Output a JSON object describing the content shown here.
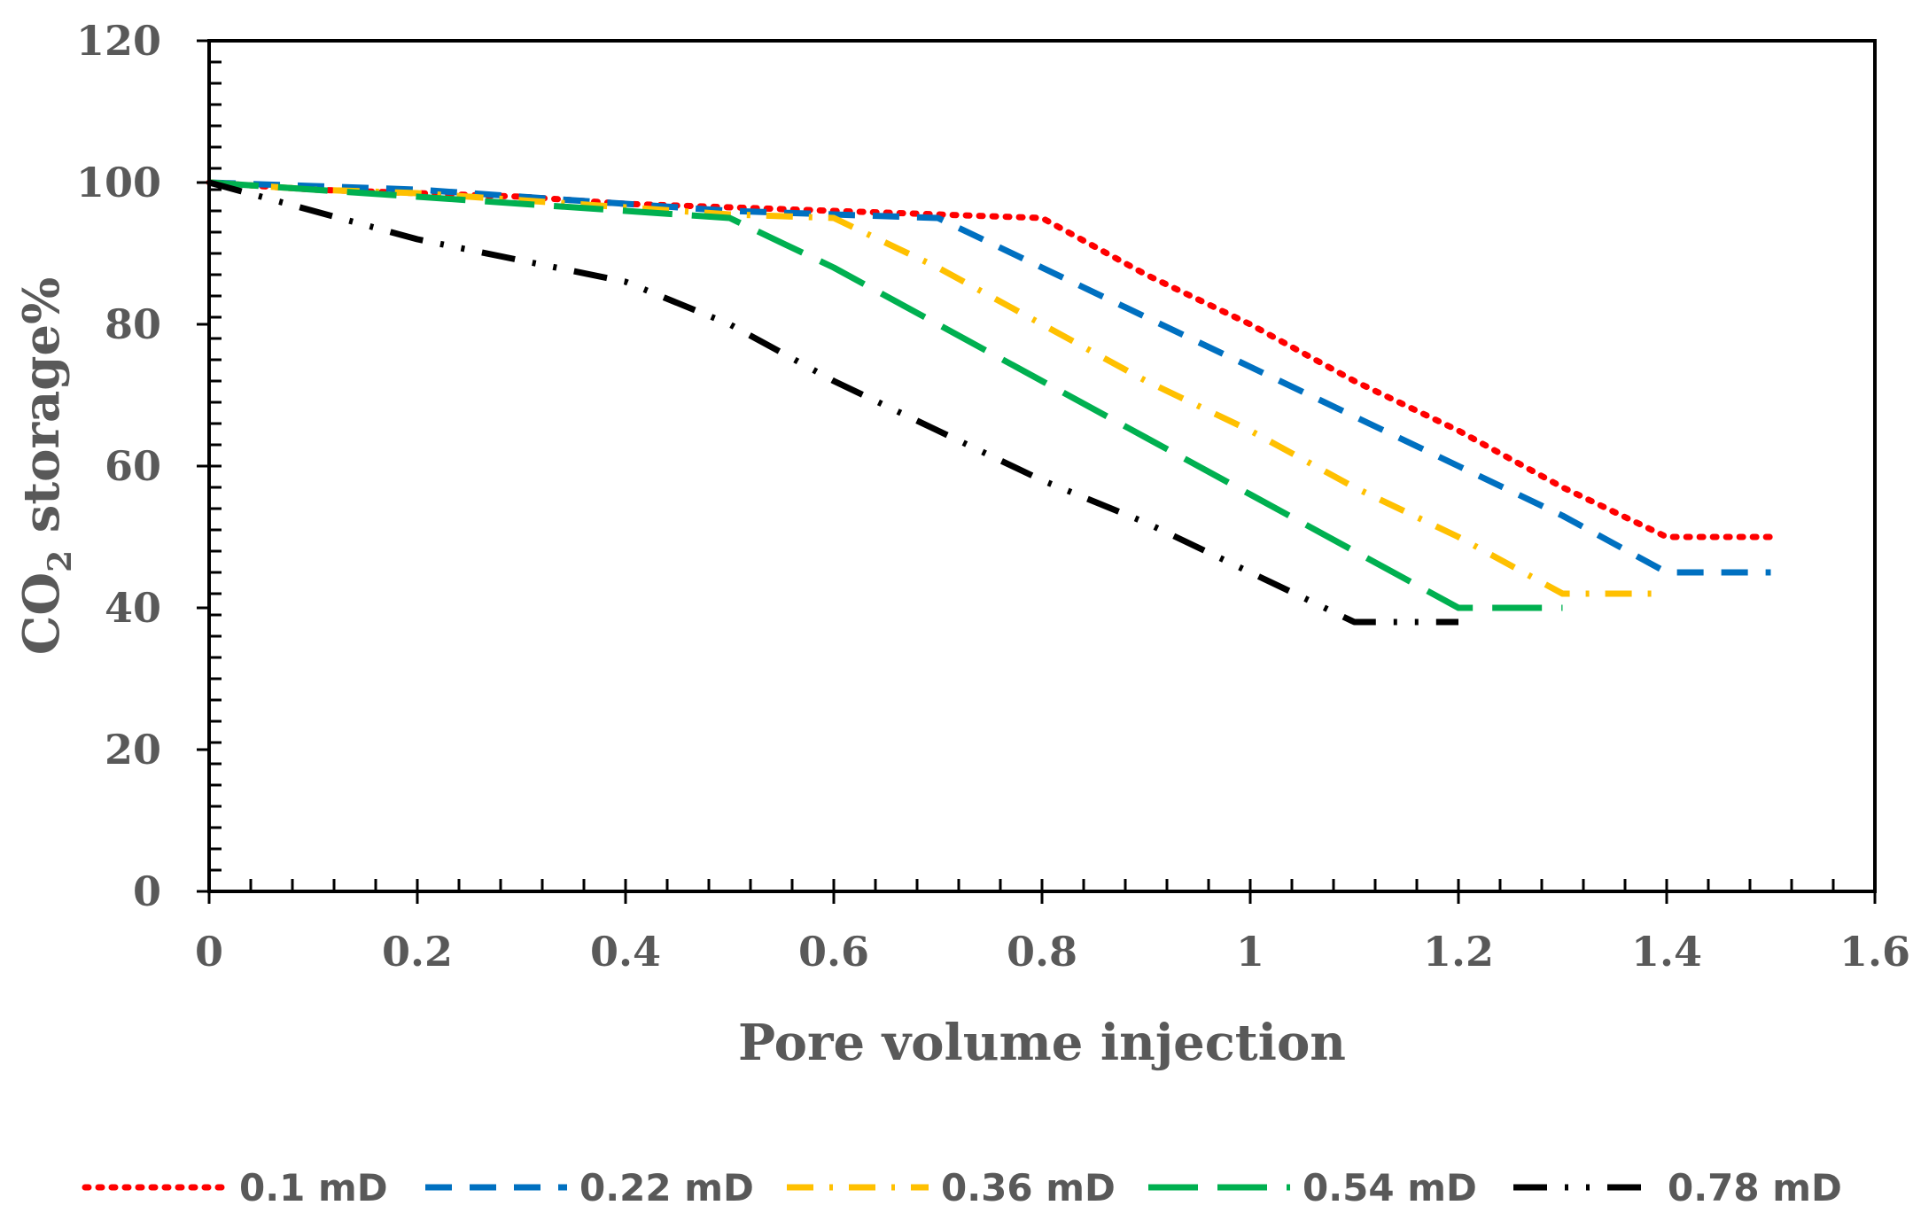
{
  "chart_data": {
    "type": "line",
    "xlabel": "Pore volume injection",
    "ylabel_prefix": "CO",
    "ylabel_subscript": "2",
    "ylabel_suffix": " storage%",
    "xlim": [
      0,
      1.6
    ],
    "ylim": [
      0,
      120
    ],
    "x_ticks": [
      0,
      0.2,
      0.4,
      0.6,
      0.8,
      1,
      1.2,
      1.4,
      1.6
    ],
    "x_tick_labels": [
      "0",
      "0.2",
      "0.4",
      "0.6",
      "0.8",
      "1",
      "1.2",
      "1.4",
      "1.6"
    ],
    "y_ticks": [
      0,
      20,
      40,
      60,
      80,
      100,
      120
    ],
    "y_tick_labels": [
      "0",
      "20",
      "40",
      "60",
      "80",
      "100",
      "120"
    ],
    "grid": false,
    "legend_position": "bottom",
    "series": [
      {
        "name": "0.1 mD",
        "color": "#FF0000",
        "style": "dotted",
        "x": [
          0,
          0.1,
          0.2,
          0.3,
          0.4,
          0.5,
          0.6,
          0.7,
          0.8,
          0.9,
          1.0,
          1.1,
          1.2,
          1.3,
          1.4,
          1.5
        ],
        "y": [
          100,
          99,
          98.5,
          98,
          97,
          96.5,
          96,
          95.5,
          95,
          87,
          80,
          72,
          65,
          57,
          50,
          50
        ]
      },
      {
        "name": "0.22 mD",
        "color": "#0070C0",
        "style": "dashed",
        "x": [
          0,
          0.1,
          0.2,
          0.3,
          0.4,
          0.5,
          0.6,
          0.7,
          0.8,
          0.9,
          1.0,
          1.1,
          1.2,
          1.3,
          1.4,
          1.5
        ],
        "y": [
          100,
          99.5,
          99,
          98,
          97,
          96,
          95.5,
          95,
          88,
          81,
          74,
          67,
          60,
          53,
          45,
          45
        ]
      },
      {
        "name": "0.36 mD",
        "color": "#FFC000",
        "style": "dashdot",
        "x": [
          0,
          0.1,
          0.2,
          0.3,
          0.4,
          0.5,
          0.6,
          0.7,
          0.8,
          0.9,
          1.0,
          1.1,
          1.2,
          1.3,
          1.4
        ],
        "y": [
          100,
          99,
          98.5,
          97.5,
          96.5,
          95.5,
          95,
          88,
          80,
          72,
          65,
          57,
          50,
          42,
          42
        ]
      },
      {
        "name": "0.54 mD",
        "color": "#00B050",
        "style": "longdash",
        "x": [
          0,
          0.1,
          0.2,
          0.3,
          0.4,
          0.5,
          0.6,
          0.7,
          0.8,
          0.9,
          1.0,
          1.1,
          1.2,
          1.3
        ],
        "y": [
          100,
          99,
          98,
          97,
          96,
          95,
          88,
          80,
          72,
          64,
          56,
          48,
          40,
          40
        ]
      },
      {
        "name": "0.78 mD",
        "color": "#000000",
        "style": "dashdotdot",
        "x": [
          0,
          0.1,
          0.2,
          0.3,
          0.4,
          0.5,
          0.6,
          0.7,
          0.8,
          0.9,
          1.0,
          1.1,
          1.2
        ],
        "y": [
          100,
          96,
          92,
          89,
          86,
          80,
          72,
          65,
          58,
          52,
          45,
          38,
          38
        ]
      }
    ]
  }
}
